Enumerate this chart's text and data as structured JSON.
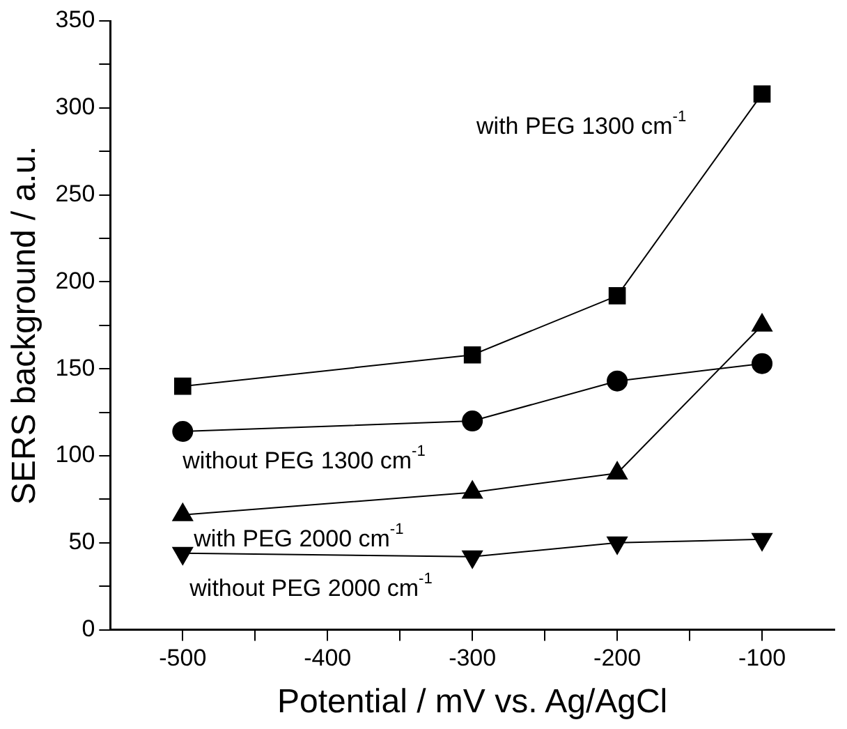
{
  "chart_data": {
    "type": "line",
    "xlabel": "Potential / mV vs. Ag/AgCl",
    "ylabel": "SERS background / a.u.",
    "x": [
      -500,
      -300,
      -200,
      -100
    ],
    "series": [
      {
        "name": "with PEG 1300 cm$^{-1}$",
        "color": "#000000",
        "marker": "square",
        "values": [
          140,
          158,
          192,
          308
        ]
      },
      {
        "name": "without PEG 1300 cm$^{-1}$",
        "color": "#000000",
        "marker": "circle",
        "values": [
          114,
          120,
          143,
          153
        ]
      },
      {
        "name": "with PEG 2000 cm$^{-1}$",
        "color": "#000000",
        "marker": "triangle",
        "values": [
          66,
          79,
          90,
          175
        ]
      },
      {
        "name": "without PEG 2000 cm$^{-1}$",
        "color": "#000000",
        "marker": "triangle-down",
        "values": [
          44,
          42,
          50,
          52
        ]
      }
    ],
    "xlim": [
      -550,
      -50
    ],
    "xticks": [
      -500,
      {
        "value": -450,
        "label": null
      },
      -400,
      {
        "value": -350,
        "label": null
      },
      -300,
      {
        "value": -250,
        "label": null
      },
      -200,
      {
        "value": -150,
        "label": null
      },
      -100
    ],
    "ylim": [
      0,
      350
    ],
    "yticks": [
      0,
      {
        "value": 25,
        "label": null
      },
      50,
      {
        "value": 75,
        "label": null
      },
      100,
      {
        "value": 125,
        "label": null
      },
      150,
      {
        "value": 175,
        "label": null
      },
      200,
      {
        "value": 225,
        "label": null
      },
      250,
      {
        "value": 275,
        "label": null
      },
      300,
      {
        "value": 325,
        "label": null
      },
      350
    ],
    "grid": false,
    "legend": false,
    "line_style": "solid"
  }
}
